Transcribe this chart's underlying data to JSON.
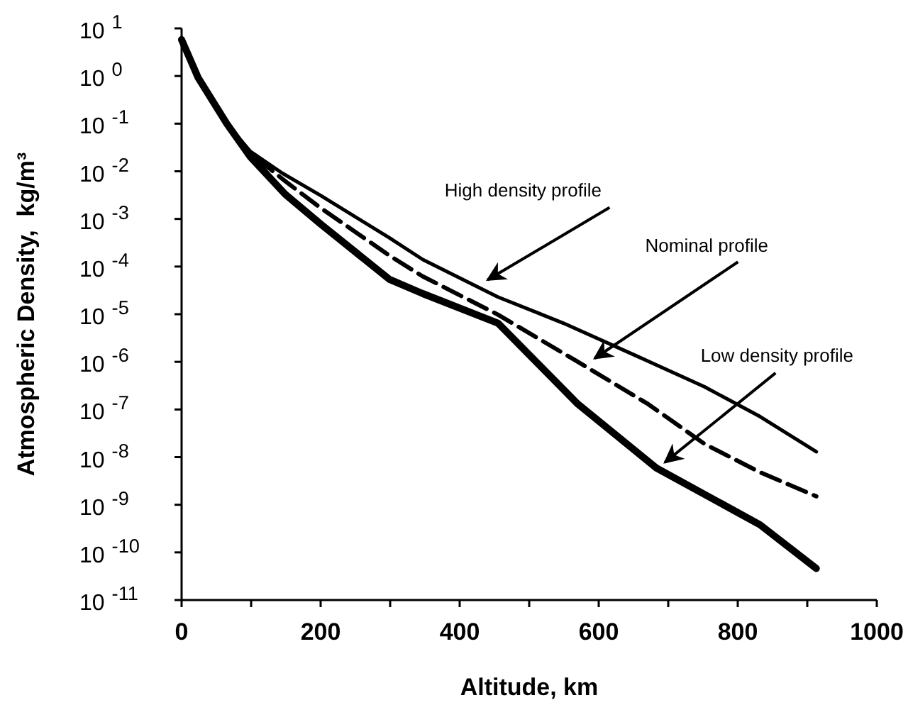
{
  "chart_data": {
    "type": "line",
    "xlabel": "Altitude, km",
    "ylabel": "Atmospheric Density,  kg/m³",
    "log": "y",
    "grid": false,
    "xlim": [
      0,
      1000
    ],
    "xticks": [
      0,
      {
        "value": 100,
        "label": null
      },
      200,
      {
        "value": 300,
        "label": null
      },
      400,
      {
        "value": 500,
        "label": null
      },
      600,
      {
        "value": 700,
        "label": null
      },
      800,
      {
        "value": 900,
        "label": null
      },
      1000
    ],
    "ylim": [
      1e-11,
      10
    ],
    "yticks": [
      {
        "value": 10,
        "label": "10$^{1}$"
      },
      {
        "value": 1,
        "label": "10$^{0}$"
      },
      {
        "value": 0.1,
        "label": "10$^{-1}$"
      },
      {
        "value": 0.01,
        "label": "10$^{-2}$"
      },
      {
        "value": 0.001,
        "label": "10$^{-3}$"
      },
      {
        "value": 0.0001,
        "label": "10$^{-4}$"
      },
      {
        "value": 1e-05,
        "label": "10$^{-5}$"
      },
      {
        "value": 1e-06,
        "label": "10$^{-6}$"
      },
      {
        "value": 1e-07,
        "label": "10$^{-7}$"
      },
      {
        "value": 1e-08,
        "label": "10$^{-8}$"
      },
      {
        "value": 1e-09,
        "label": "10$^{-9}$"
      },
      {
        "value": 1e-10,
        "label": "10$^{-10}$"
      },
      {
        "value": 1e-11,
        "label": "10$^{-11}$"
      }
    ],
    "series": [
      {
        "color": "#000000",
        "line_style": "solid",
        "x": [
          0,
          24,
          65,
          99,
          145,
          200,
          299,
          347,
          455,
          549,
          651,
          752,
          832,
          913
        ],
        "values": [
          5.8,
          0.91,
          0.1,
          0.026,
          0.0091,
          0.0031,
          0.0004,
          0.00014,
          2.3e-05,
          6.5e-06,
          1.4e-06,
          3e-07,
          7.1e-08,
          1.3e-08
        ]
      },
      {
        "color": "#000000",
        "line_style": "dashed",
        "x": [
          0,
          24,
          65,
          99,
          149,
          200,
          299,
          347,
          455,
          570,
          671,
          752,
          832,
          913
        ],
        "values": [
          5.8,
          0.91,
          0.1,
          0.024,
          0.0062,
          0.0017,
          0.00017,
          6.2e-05,
          9.8e-06,
          1e-06,
          1.3e-07,
          1.9e-08,
          4.8e-09,
          1.5e-09
        ]
      },
      {
        "color": "#000000",
        "line_style": "solid",
        "x": [
          0,
          24,
          65,
          99,
          149,
          200,
          299,
          347,
          455,
          570,
          683,
          832,
          913
        ],
        "values": [
          5.8,
          0.91,
          0.1,
          0.02,
          0.0033,
          0.00078,
          5.4e-05,
          2.7e-05,
          6.5e-06,
          1.3e-07,
          5.9e-09,
          3.8e-10,
          4.6e-11
        ]
      }
    ],
    "annotations": [
      {
        "text": "High density profile",
        "x": 430,
        "y": 4e-05
      },
      {
        "text": "Nominal profile",
        "x": 584,
        "y": 9e-07
      },
      {
        "text": "Low density profile",
        "x": 685,
        "y": 5.9e-09
      }
    ]
  }
}
